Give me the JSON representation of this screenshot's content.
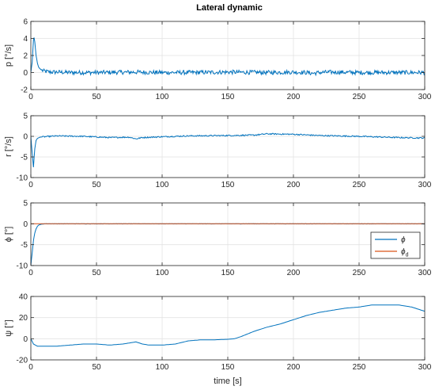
{
  "figure": {
    "title": "Lateral dynamic",
    "xlabel": "time [s]"
  },
  "chart_data": [
    {
      "type": "line",
      "ylabel": "p [°/s]",
      "xlim": [
        0,
        300
      ],
      "ylim": [
        -2,
        6
      ],
      "xticks": [
        0,
        50,
        100,
        150,
        200,
        250,
        300
      ],
      "yticks": [
        -2,
        0,
        2,
        4,
        6
      ],
      "grid": true,
      "series": [
        {
          "color": "#0072BD",
          "x": [
            0,
            1,
            2,
            2.5,
            3,
            3.5,
            4,
            5,
            6,
            8,
            10,
            15,
            20,
            30,
            50,
            80,
            100,
            120,
            150,
            180,
            200,
            210,
            215,
            220,
            230,
            250,
            270,
            300
          ],
          "y": [
            0,
            1.2,
            3.8,
            4.1,
            3.6,
            2.8,
            2.0,
            1.1,
            0.6,
            0.3,
            0.15,
            0.05,
            0.05,
            0.0,
            0.0,
            0.05,
            0.0,
            0.0,
            0.05,
            0.0,
            0.05,
            0.0,
            -0.1,
            0.0,
            0.05,
            0.0,
            0.0,
            0.0
          ],
          "noise": 0.25
        }
      ]
    },
    {
      "type": "line",
      "ylabel": "r [°/s]",
      "xlim": [
        0,
        300
      ],
      "ylim": [
        -10,
        5
      ],
      "xticks": [
        0,
        50,
        100,
        150,
        200,
        250,
        300
      ],
      "yticks": [
        -10,
        -5,
        0,
        5
      ],
      "grid": true,
      "series": [
        {
          "color": "#0072BD",
          "x": [
            0,
            1,
            2,
            3,
            4,
            5,
            7,
            10,
            20,
            40,
            60,
            75,
            80,
            85,
            100,
            120,
            150,
            170,
            180,
            200,
            220,
            250,
            280,
            300
          ],
          "y": [
            0,
            -4,
            -7.5,
            -3,
            -1,
            -0.5,
            -0.2,
            -0.1,
            0.1,
            0.0,
            -0.3,
            -0.2,
            -0.6,
            -0.3,
            -0.1,
            0.1,
            0.2,
            0.3,
            0.6,
            0.5,
            0.2,
            0.0,
            -0.3,
            -0.4
          ],
          "noise": 0.15
        }
      ]
    },
    {
      "type": "line",
      "ylabel": "ϕ [°]",
      "xlim": [
        0,
        300
      ],
      "ylim": [
        -10,
        5
      ],
      "xticks": [
        0,
        50,
        100,
        150,
        200,
        250,
        300
      ],
      "yticks": [
        -10,
        -5,
        0,
        5
      ],
      "grid": true,
      "legend_position": "lower-right",
      "series": [
        {
          "name": "ϕ",
          "color": "#0072BD",
          "x": [
            0,
            1,
            2,
            3,
            4,
            5,
            6,
            8,
            10,
            15,
            300
          ],
          "y": [
            -10,
            -7,
            -4,
            -2.2,
            -1.2,
            -0.6,
            -0.3,
            -0.1,
            0.0,
            0.0,
            0.0
          ],
          "noise": 0.05
        },
        {
          "name": "ϕ",
          "subscript": "d",
          "color": "#D95319",
          "x": [
            0,
            300
          ],
          "y": [
            0,
            0
          ],
          "noise": 0.0
        }
      ]
    },
    {
      "type": "line",
      "ylabel": "ψ [°]",
      "xlim": [
        0,
        300
      ],
      "ylim": [
        -20,
        40
      ],
      "xticks": [
        0,
        50,
        100,
        150,
        200,
        250,
        300
      ],
      "yticks": [
        -20,
        0,
        20,
        40
      ],
      "grid": true,
      "series": [
        {
          "color": "#0072BD",
          "x": [
            0,
            2,
            5,
            10,
            20,
            30,
            40,
            50,
            60,
            70,
            80,
            85,
            90,
            100,
            110,
            120,
            130,
            140,
            150,
            155,
            160,
            170,
            180,
            190,
            200,
            210,
            220,
            230,
            240,
            250,
            260,
            270,
            280,
            290,
            300
          ],
          "y": [
            0,
            -5,
            -7,
            -7,
            -7,
            -6,
            -5,
            -5,
            -6,
            -5,
            -3,
            -5,
            -6,
            -6,
            -5,
            -2,
            -1,
            -1,
            -0.5,
            0,
            2,
            7,
            11,
            14,
            18,
            22,
            25,
            27,
            29,
            30,
            32,
            32,
            32,
            30,
            26
          ],
          "noise": 0.0
        }
      ]
    }
  ]
}
